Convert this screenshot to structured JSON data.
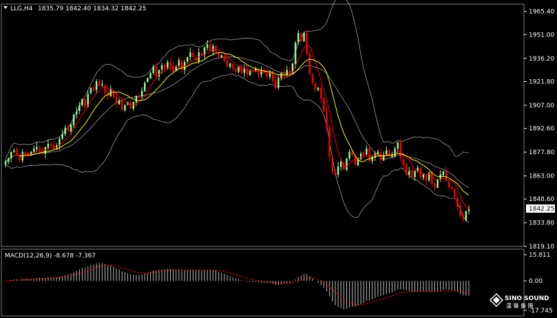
{
  "header": {
    "symbol_label": "LLG,H4",
    "ohlc": "1835.79 1842.40 1834.32 1842.25"
  },
  "macd": {
    "label": "MACD(12,26,9) -8.678 -7.367",
    "axis_ticks": [
      "15.811",
      "0.00",
      "-17.745"
    ],
    "axis_values": [
      15.811,
      0.0,
      -17.745
    ]
  },
  "price_axis": {
    "tick_labels": [
      "1965.40",
      "1951.00",
      "1936.20",
      "1921.80",
      "1907.00",
      "1892.60",
      "1877.80",
      "1863.00",
      "1848.60",
      "1833.80",
      "1819.10"
    ],
    "tick_values": [
      1965.4,
      1951.0,
      1936.2,
      1921.8,
      1907.0,
      1892.6,
      1877.8,
      1863.0,
      1848.6,
      1833.8,
      1819.1
    ]
  },
  "current_price": "1842.25",
  "logo": {
    "line1": "SINO SOUND",
    "line2": "漢 聲 集 團"
  },
  "colors": {
    "background": "#000000",
    "bull": "#98fb98",
    "bear": "#ff0000",
    "ma": "#ffff00",
    "ema": "#ff0000",
    "bands": "#a0a0a0",
    "macd_hist": "#c0c0c0",
    "macd_signal": "#ff0000"
  },
  "chart_data": {
    "type": "candlestick",
    "symbol": "LLG",
    "timeframe": "H4",
    "y_range": [
      1819.1,
      1970
    ],
    "closes": [
      1872,
      1874,
      1878,
      1879,
      1876,
      1873,
      1878,
      1877,
      1876,
      1878,
      1880,
      1881,
      1879,
      1877,
      1881,
      1883,
      1882,
      1880,
      1882,
      1886,
      1889,
      1893,
      1891,
      1895,
      1901,
      1903,
      1907,
      1911,
      1906,
      1914,
      1918,
      1916,
      1922,
      1919,
      1920,
      1915,
      1913,
      1917,
      1912,
      1908,
      1910,
      1904,
      1907,
      1909,
      1905,
      1909,
      1913,
      1912,
      1916,
      1921,
      1924,
      1927,
      1931,
      1925,
      1929,
      1932,
      1930,
      1934,
      1931,
      1928,
      1931,
      1935,
      1929,
      1934,
      1937,
      1940,
      1937,
      1935,
      1940,
      1938,
      1943,
      1945,
      1941,
      1944,
      1940,
      1937,
      1938,
      1935,
      1931,
      1933,
      1930,
      1928,
      1931,
      1927,
      1930,
      1926,
      1929,
      1928,
      1930,
      1926,
      1929,
      1927,
      1925,
      1928,
      1922,
      1918,
      1924,
      1927,
      1926,
      1929,
      1927,
      1933,
      1946,
      1952,
      1947,
      1952,
      1939,
      1927,
      1921,
      1917,
      1918,
      1911,
      1903,
      1893,
      1875,
      1866,
      1864,
      1869,
      1872,
      1867,
      1874,
      1878,
      1876,
      1870,
      1874,
      1877,
      1876,
      1880,
      1872,
      1875,
      1877,
      1878,
      1873,
      1876,
      1879,
      1875,
      1876,
      1880,
      1884,
      1874,
      1870,
      1864,
      1866,
      1862,
      1866,
      1868,
      1862,
      1864,
      1860,
      1865,
      1858,
      1856,
      1861,
      1864,
      1866,
      1860,
      1856,
      1855,
      1850,
      1844,
      1838,
      1836,
      1841,
      1842.25
    ],
    "bollinger": {
      "period": 20
    },
    "moving_averages": [
      "yellow",
      "red"
    ],
    "macd": {
      "fast": 12,
      "slow": 26,
      "signal": 9,
      "main": -8.678,
      "signal_value": -7.367
    }
  }
}
